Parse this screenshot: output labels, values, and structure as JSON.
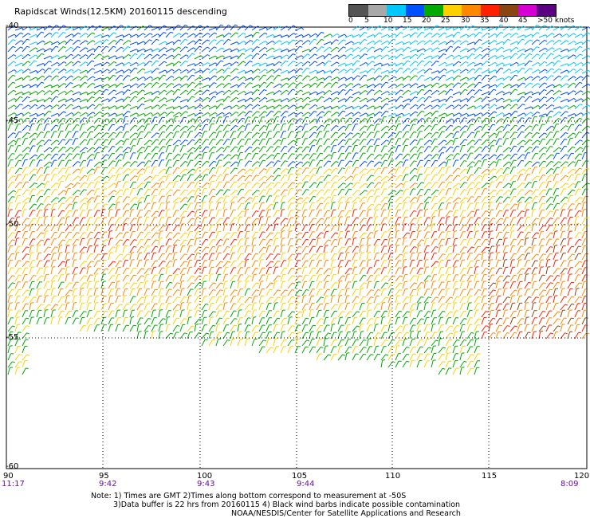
{
  "title": "Rapidscat Winds(12.5KM) 20160115 descending",
  "scale": {
    "labels": [
      "0",
      "5",
      "10",
      "15",
      "20",
      "25",
      "30",
      "35",
      "40",
      "45",
      ">50 knots"
    ],
    "colors": [
      "#545454",
      "#a8a8a8",
      "#00c8ff",
      "#0050ff",
      "#00aa00",
      "#ffd000",
      "#ff8800",
      "#ff2000",
      "#8b4513",
      "#d400d4",
      "#5a0080"
    ]
  },
  "lat_labels": [
    "-40",
    "-45",
    "-50",
    "-55",
    "-60"
  ],
  "lon_labels": [
    "90",
    "95",
    "100",
    "105",
    "110",
    "115",
    "120"
  ],
  "time_labels": [
    "11:17",
    "9:42",
    "9:43",
    "9:44",
    "8:09"
  ],
  "notes": {
    "line1": "Note: 1) Times are GMT 2)Times along bottom correspond to measurement at -50S",
    "line2": "3)Data buffer is 22 hrs from 20160115 4) Black wind barbs indicate possible contamination",
    "line3": "NOAA/NESDIS/Center for Satellite Applications and Research"
  }
}
